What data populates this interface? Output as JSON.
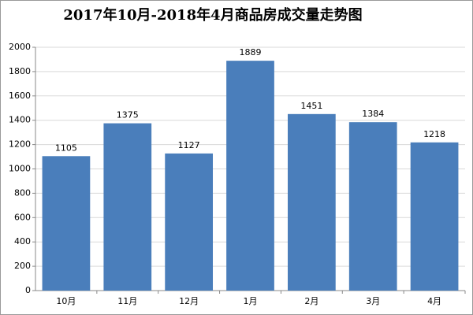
{
  "chart_data": {
    "type": "bar",
    "title": "2017年10月-2018年4月商品房成交量走势图",
    "categories": [
      "10月",
      "11月",
      "12月",
      "1月",
      "2月",
      "3月",
      "4月"
    ],
    "values": [
      1105,
      1375,
      1127,
      1889,
      1451,
      1384,
      1218
    ],
    "color": "#4a7ebb",
    "ylim": [
      0,
      2000
    ],
    "yticks": [
      0,
      200,
      400,
      600,
      800,
      1000,
      1200,
      1400,
      1600,
      1800,
      2000
    ],
    "grid": true
  }
}
